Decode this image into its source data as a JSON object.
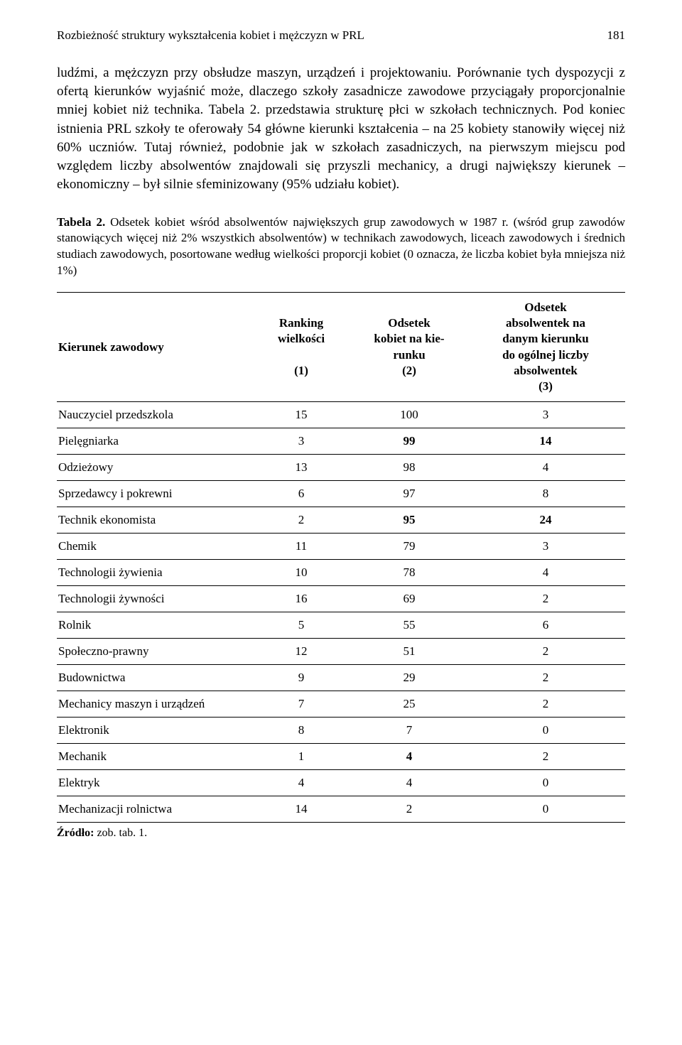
{
  "header": {
    "running_title": "Rozbieżność struktury wykształcenia kobiet i mężczyzn w PRL",
    "page_number": "181"
  },
  "body_paragraph": "ludźmi, a mężczyzn przy obsłudze maszyn, urządzeń i projektowaniu. Porównanie tych dyspozycji z ofertą kierunków wyjaśnić może, dlaczego szkoły zasadnicze zawodowe przyciągały proporcjonalnie mniej kobiet niż technika. Tabela 2. przedstawia strukturę płci w szkołach technicznych. Pod koniec istnienia PRL szkoły te oferowały 54 główne kierunki kształcenia – na 25 kobiety stanowiły więcej niż 60% uczniów. Tutaj również, podobnie jak w szkołach zasadniczych, na pierwszym miejscu pod względem liczby absolwentów znajdowali się przyszli mechanicy, a drugi największy kierunek – ekonomiczny – był silnie sfeminizowany (95% udziału kobiet).",
  "caption": {
    "lead": "Tabela 2.",
    "text": " Odsetek kobiet wśród absolwentów największych grup zawodowych w 1987 r. (wśród grup zawodów stanowiących więcej niż 2% wszystkich absolwentów) w technikach zawodowych, liceach zawodowych i średnich studiach zawodowych, posortowane według wielkości proporcji kobiet (0 oznacza, że liczba kobiet była mniejsza niż 1%)"
  },
  "table": {
    "columns": {
      "c0_line1": "Kierunek  zawodowy",
      "c1_line1": "Ranking",
      "c1_line2": "wielkości",
      "c1_line3": "(1)",
      "c2_line1": "Odsetek",
      "c2_line2": "kobiet na kie-",
      "c2_line3": "runku",
      "c2_line4": "(2)",
      "c3_line1": "Odsetek",
      "c3_line2": "absolwentek na",
      "c3_line3": "danym kierunku",
      "c3_line4": "do ogólnej liczby",
      "c3_line5": "absolwentek",
      "c3_line6": "(3)"
    },
    "rows": [
      {
        "label": "Nauczyciel przedszkola",
        "c1": "15",
        "c2": "100",
        "c3": "3",
        "bold2": false,
        "bold3": false
      },
      {
        "label": "Pielęgniarka",
        "c1": "3",
        "c2": "99",
        "c3": "14",
        "bold2": true,
        "bold3": true
      },
      {
        "label": "Odzieżowy",
        "c1": "13",
        "c2": "98",
        "c3": "4",
        "bold2": false,
        "bold3": false
      },
      {
        "label": "Sprzedawcy i pokrewni",
        "c1": "6",
        "c2": "97",
        "c3": "8",
        "bold2": false,
        "bold3": false
      },
      {
        "label": "Technik ekonomista",
        "c1": "2",
        "c2": "95",
        "c3": "24",
        "bold2": true,
        "bold3": true
      },
      {
        "label": "Chemik",
        "c1": "11",
        "c2": "79",
        "c3": "3",
        "bold2": false,
        "bold3": false
      },
      {
        "label": "Technologii żywienia",
        "c1": "10",
        "c2": "78",
        "c3": "4",
        "bold2": false,
        "bold3": false
      },
      {
        "label": "Technologii żywności",
        "c1": "16",
        "c2": "69",
        "c3": "2",
        "bold2": false,
        "bold3": false
      },
      {
        "label": "Rolnik",
        "c1": "5",
        "c2": "55",
        "c3": "6",
        "bold2": false,
        "bold3": false
      },
      {
        "label": "Społeczno-prawny",
        "c1": "12",
        "c2": "51",
        "c3": "2",
        "bold2": false,
        "bold3": false
      },
      {
        "label": "Budownictwa",
        "c1": "9",
        "c2": "29",
        "c3": "2",
        "bold2": false,
        "bold3": false
      },
      {
        "label": "Mechanicy maszyn i urządzeń",
        "c1": "7",
        "c2": "25",
        "c3": "2",
        "bold2": false,
        "bold3": false
      },
      {
        "label": "Elektronik",
        "c1": "8",
        "c2": "7",
        "c3": "0",
        "bold2": false,
        "bold3": false
      },
      {
        "label": "Mechanik",
        "c1": "1",
        "c2": "4",
        "c3": "2",
        "bold2": true,
        "bold3": false
      },
      {
        "label": "Elektryk",
        "c1": "4",
        "c2": "4",
        "c3": "0",
        "bold2": false,
        "bold3": false
      },
      {
        "label": "Mechanizacji rolnictwa",
        "c1": "14",
        "c2": "2",
        "c3": "0",
        "bold2": false,
        "bold3": false
      }
    ]
  },
  "source": {
    "label": "Źródło:",
    "text": " zob. tab. 1."
  }
}
